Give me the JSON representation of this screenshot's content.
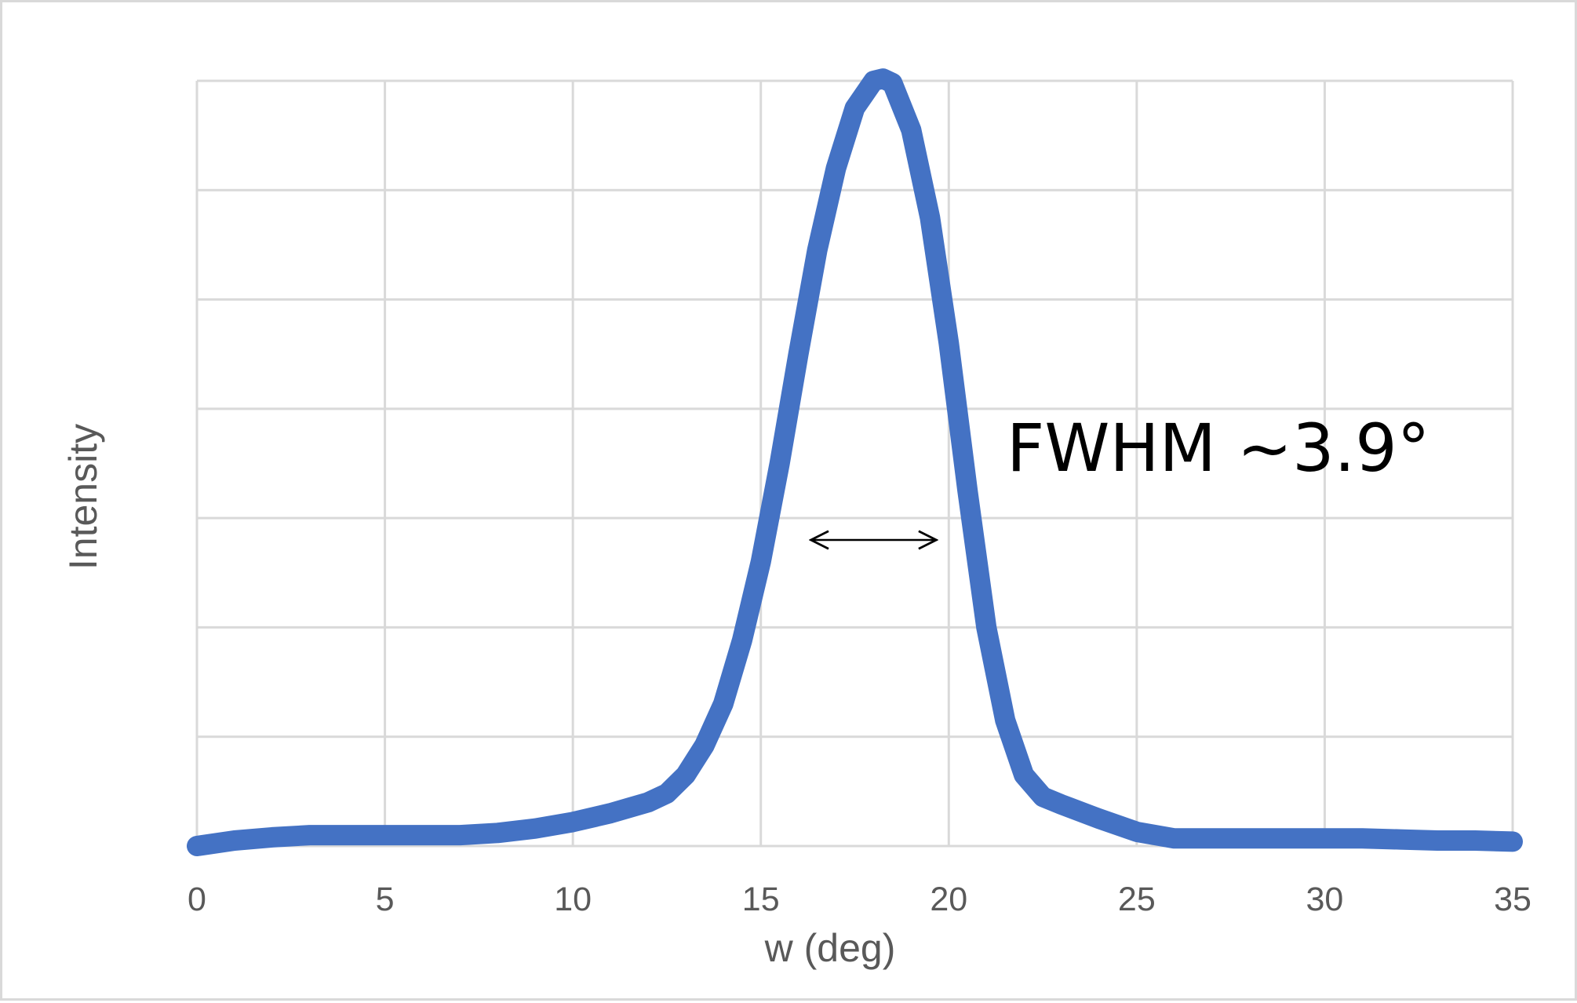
{
  "chart_data": {
    "type": "line",
    "title": "",
    "xlabel": "w (deg)",
    "ylabel": "Intensity",
    "xlim": [
      0,
      35
    ],
    "ylim": [
      0,
      7
    ],
    "x_ticks": [
      0,
      5,
      10,
      15,
      20,
      25,
      30,
      35
    ],
    "x_tick_labels": [
      "0",
      "5",
      "10",
      "15",
      "20",
      "25",
      "30",
      "35"
    ],
    "y_tick_labels_visible": false,
    "grid": true,
    "legend": "none",
    "series": [
      {
        "color": "#4472c4",
        "x": [
          0,
          1,
          2,
          3,
          4,
          5,
          6,
          7,
          8,
          9,
          10,
          11,
          12,
          12.5,
          13,
          13.5,
          14,
          14.5,
          15,
          15.5,
          16,
          16.5,
          17,
          17.5,
          18,
          18.25,
          18.5,
          19,
          19.5,
          20,
          20.5,
          21,
          21.5,
          22,
          22.5,
          23,
          24,
          25,
          26,
          27,
          28,
          29,
          30,
          31,
          32,
          33,
          34,
          35
        ],
        "y": [
          0.0,
          0.05,
          0.08,
          0.1,
          0.1,
          0.1,
          0.1,
          0.1,
          0.12,
          0.16,
          0.22,
          0.3,
          0.4,
          0.48,
          0.65,
          0.92,
          1.3,
          1.88,
          2.6,
          3.5,
          4.5,
          5.45,
          6.2,
          6.75,
          7.0,
          7.02,
          6.98,
          6.55,
          5.75,
          4.6,
          3.25,
          2.0,
          1.15,
          0.65,
          0.45,
          0.38,
          0.25,
          0.13,
          0.07,
          0.07,
          0.07,
          0.07,
          0.07,
          0.07,
          0.06,
          0.05,
          0.05,
          0.04
        ]
      }
    ],
    "annotations": [
      {
        "text": "FWHM ~3.9°",
        "arrow_x_range": [
          16.25,
          19.75
        ],
        "arrow_y": 2.8
      }
    ]
  }
}
